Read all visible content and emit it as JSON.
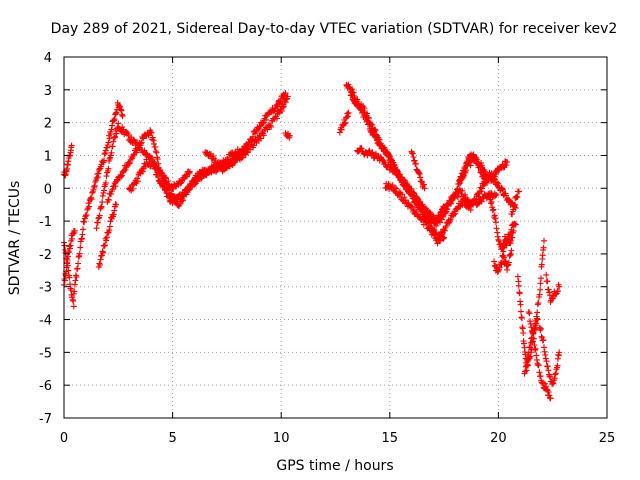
{
  "chart_data": {
    "type": "scatter",
    "title": "Day 289 of 2021, Sidereal Day-to-day VTEC variation (SDTVAR) for receiver kev2",
    "xlabel": "GPS time / hours",
    "ylabel": "SDTVAR / TECUs",
    "xlim": [
      0,
      25
    ],
    "ylim": [
      -7,
      4
    ],
    "xticks": [
      0,
      5,
      10,
      15,
      20,
      25
    ],
    "yticks": [
      -7,
      -6,
      -5,
      -4,
      -3,
      -2,
      -1,
      0,
      1,
      2,
      3,
      4
    ],
    "grid": true,
    "legend": "none",
    "marker": "+",
    "color": "#ff0000",
    "series": [
      {
        "name": "tracks",
        "segments": [
          [
            [
              0.0,
              0.4
            ],
            [
              0.1,
              0.5
            ],
            [
              0.2,
              0.8
            ],
            [
              0.3,
              1.1
            ],
            [
              0.35,
              1.3
            ]
          ],
          [
            [
              0.0,
              -2.9
            ],
            [
              0.1,
              -2.5
            ],
            [
              0.2,
              -2.0
            ],
            [
              0.35,
              -1.5
            ],
            [
              0.5,
              -1.3
            ]
          ],
          [
            [
              0.0,
              -1.7
            ],
            [
              0.15,
              -2.3
            ],
            [
              0.3,
              -3.0
            ],
            [
              0.45,
              -3.6
            ]
          ],
          [
            [
              0.45,
              -3.2
            ],
            [
              0.6,
              -2.5
            ],
            [
              0.75,
              -1.8
            ],
            [
              0.9,
              -1.1
            ],
            [
              1.1,
              -0.6
            ],
            [
              1.3,
              -0.2
            ],
            [
              1.5,
              0.3
            ],
            [
              1.7,
              0.7
            ],
            [
              1.9,
              1.0
            ],
            [
              2.1,
              1.6
            ],
            [
              2.3,
              2.1
            ],
            [
              2.5,
              2.6
            ],
            [
              2.7,
              2.2
            ]
          ],
          [
            [
              1.5,
              -1.2
            ],
            [
              1.7,
              -0.6
            ],
            [
              1.9,
              0.1
            ],
            [
              2.1,
              0.9
            ],
            [
              2.3,
              1.5
            ],
            [
              2.5,
              1.9
            ],
            [
              2.8,
              1.7
            ],
            [
              3.2,
              1.4
            ],
            [
              3.6,
              1.2
            ],
            [
              4.0,
              0.9
            ],
            [
              4.3,
              0.4
            ],
            [
              4.6,
              0.0
            ],
            [
              4.9,
              -0.4
            ],
            [
              5.2,
              -0.3
            ],
            [
              5.6,
              -0.1
            ],
            [
              6.0,
              0.2
            ],
            [
              6.4,
              0.4
            ],
            [
              6.8,
              0.6
            ],
            [
              7.2,
              0.7
            ],
            [
              7.6,
              0.7
            ],
            [
              8.0,
              0.9
            ],
            [
              8.4,
              1.1
            ],
            [
              8.8,
              1.4
            ],
            [
              9.2,
              1.7
            ],
            [
              9.6,
              2.0
            ],
            [
              10.0,
              2.4
            ],
            [
              10.3,
              2.8
            ]
          ],
          [
            [
              1.6,
              -2.4
            ],
            [
              1.8,
              -1.9
            ],
            [
              2.0,
              -1.4
            ],
            [
              2.2,
              -0.9
            ],
            [
              2.4,
              -0.5
            ]
          ],
          [
            [
              2.0,
              -0.4
            ],
            [
              2.4,
              0.2
            ],
            [
              2.8,
              0.6
            ],
            [
              3.2,
              1.0
            ],
            [
              3.6,
              1.5
            ],
            [
              4.0,
              1.7
            ],
            [
              4.2,
              1.2
            ],
            [
              4.4,
              0.6
            ],
            [
              4.7,
              0.1
            ],
            [
              5.0,
              -0.3
            ],
            [
              5.3,
              -0.5
            ],
            [
              5.6,
              -0.2
            ],
            [
              5.9,
              0.2
            ],
            [
              6.3,
              0.5
            ],
            [
              6.7,
              0.5
            ],
            [
              7.1,
              0.6
            ],
            [
              7.5,
              0.9
            ],
            [
              7.9,
              1.1
            ],
            [
              8.3,
              1.2
            ],
            [
              8.7,
              1.6
            ],
            [
              9.1,
              2.0
            ],
            [
              9.5,
              2.3
            ],
            [
              9.9,
              2.6
            ],
            [
              10.2,
              2.9
            ]
          ],
          [
            [
              3.0,
              -0.1
            ],
            [
              3.4,
              0.3
            ],
            [
              3.8,
              0.8
            ],
            [
              4.2,
              0.7
            ],
            [
              4.6,
              0.3
            ],
            [
              5.0,
              0.0
            ],
            [
              5.4,
              0.2
            ],
            [
              5.8,
              0.5
            ]
          ],
          [
            [
              6.5,
              1.1
            ],
            [
              6.9,
              0.9
            ],
            [
              7.3,
              0.6
            ],
            [
              7.7,
              0.8
            ],
            [
              8.1,
              1.0
            ],
            [
              8.5,
              1.3
            ]
          ],
          [
            [
              10.2,
              1.7
            ],
            [
              10.4,
              1.6
            ]
          ],
          [
            [
              12.7,
              1.7
            ],
            [
              12.9,
              2.0
            ],
            [
              13.1,
              2.3
            ]
          ],
          [
            [
              13.0,
              3.2
            ],
            [
              13.3,
              2.9
            ],
            [
              13.6,
              2.5
            ],
            [
              13.9,
              2.1
            ],
            [
              14.2,
              1.7
            ],
            [
              14.5,
              1.4
            ],
            [
              14.8,
              1.1
            ],
            [
              15.1,
              0.8
            ],
            [
              15.4,
              0.4
            ],
            [
              15.7,
              0.1
            ],
            [
              16.0,
              -0.2
            ],
            [
              16.3,
              -0.5
            ],
            [
              16.6,
              -0.8
            ],
            [
              16.9,
              -1.2
            ],
            [
              17.2,
              -1.5
            ],
            [
              17.5,
              -1.3
            ],
            [
              17.8,
              -0.9
            ],
            [
              18.1,
              -0.6
            ],
            [
              18.4,
              -0.4
            ],
            [
              18.7,
              -0.6
            ],
            [
              19.0,
              -0.3
            ],
            [
              19.3,
              0.1
            ],
            [
              19.6,
              0.3
            ],
            [
              19.9,
              0.2
            ],
            [
              20.2,
              -0.1
            ],
            [
              20.5,
              -0.4
            ],
            [
              20.8,
              -0.6
            ]
          ],
          [
            [
              13.2,
              2.8
            ],
            [
              13.5,
              2.6
            ],
            [
              13.8,
              2.4
            ],
            [
              14.1,
              2.0
            ],
            [
              14.4,
              1.6
            ],
            [
              14.7,
              1.2
            ],
            [
              15.0,
              0.9
            ],
            [
              15.3,
              0.5
            ],
            [
              15.6,
              0.2
            ],
            [
              15.9,
              -0.1
            ],
            [
              16.2,
              -0.3
            ],
            [
              16.5,
              -0.6
            ],
            [
              16.8,
              -0.9
            ],
            [
              17.1,
              -1.1
            ],
            [
              17.4,
              -0.9
            ],
            [
              17.7,
              -0.5
            ],
            [
              18.0,
              -0.2
            ],
            [
              18.3,
              0.3
            ],
            [
              18.6,
              0.7
            ],
            [
              18.9,
              0.9
            ],
            [
              19.2,
              0.7
            ],
            [
              19.5,
              0.4
            ],
            [
              19.8,
              0.4
            ],
            [
              20.1,
              0.6
            ],
            [
              20.4,
              0.8
            ]
          ],
          [
            [
              13.5,
              1.2
            ],
            [
              13.9,
              1.1
            ],
            [
              14.3,
              1.0
            ],
            [
              14.7,
              0.8
            ],
            [
              15.1,
              0.6
            ],
            [
              15.5,
              0.3
            ],
            [
              15.9,
              0.0
            ],
            [
              16.3,
              -0.4
            ],
            [
              16.7,
              -0.7
            ],
            [
              17.1,
              -1.0
            ],
            [
              17.5,
              -0.6
            ],
            [
              17.9,
              -0.3
            ],
            [
              18.3,
              -0.1
            ],
            [
              18.7,
              -0.5
            ],
            [
              19.1,
              -0.4
            ],
            [
              19.5,
              -0.2
            ],
            [
              19.9,
              -0.2
            ]
          ],
          [
            [
              14.8,
              0.1
            ],
            [
              15.2,
              0.0
            ],
            [
              15.6,
              -0.3
            ],
            [
              16.0,
              -0.6
            ],
            [
              16.4,
              -0.9
            ],
            [
              16.8,
              -1.2
            ],
            [
              17.2,
              -1.6
            ],
            [
              17.5,
              -1.5
            ]
          ],
          [
            [
              16.0,
              1.1
            ],
            [
              16.2,
              0.7
            ],
            [
              16.4,
              0.3
            ],
            [
              16.6,
              0.0
            ]
          ],
          [
            [
              18.2,
              0.2
            ],
            [
              18.4,
              0.5
            ],
            [
              18.6,
              0.9
            ],
            [
              18.8,
              1.0
            ],
            [
              19.0,
              0.8
            ],
            [
              19.2,
              0.5
            ],
            [
              19.4,
              0.3
            ]
          ],
          [
            [
              19.6,
              -0.2
            ],
            [
              19.8,
              -0.8
            ],
            [
              20.0,
              -1.5
            ],
            [
              20.2,
              -2.0
            ],
            [
              20.4,
              -1.6
            ],
            [
              20.6,
              -1.2
            ],
            [
              20.8,
              -1.1
            ]
          ],
          [
            [
              19.8,
              -2.3
            ],
            [
              20.0,
              -2.6
            ],
            [
              20.2,
              -2.1
            ],
            [
              20.4,
              -2.4
            ],
            [
              20.6,
              -1.9
            ]
          ],
          [
            [
              20.6,
              -0.8
            ],
            [
              20.8,
              -0.3
            ],
            [
              20.95,
              -0.1
            ]
          ],
          [
            [
              20.9,
              -2.7
            ],
            [
              21.0,
              -3.4
            ],
            [
              21.1,
              -4.2
            ],
            [
              21.2,
              -4.9
            ],
            [
              21.3,
              -5.5
            ],
            [
              21.5,
              -5.0
            ],
            [
              21.7,
              -4.1
            ],
            [
              21.9,
              -3.2
            ],
            [
              22.0,
              -2.3
            ],
            [
              22.1,
              -1.6
            ]
          ],
          [
            [
              21.4,
              -3.8
            ],
            [
              21.6,
              -4.5
            ],
            [
              21.8,
              -5.3
            ],
            [
              22.0,
              -5.9
            ],
            [
              22.2,
              -6.1
            ],
            [
              22.4,
              -6.4
            ]
          ],
          [
            [
              21.9,
              -4.2
            ],
            [
              22.1,
              -4.8
            ],
            [
              22.3,
              -5.6
            ],
            [
              22.5,
              -6.0
            ],
            [
              22.7,
              -5.4
            ],
            [
              22.8,
              -5.0
            ]
          ],
          [
            [
              22.2,
              -2.7
            ],
            [
              22.4,
              -3.4
            ],
            [
              22.6,
              -3.2
            ],
            [
              22.8,
              -3.0
            ]
          ],
          [
            [
              21.2,
              -5.7
            ],
            [
              21.4,
              -5.0
            ],
            [
              21.6,
              -4.4
            ],
            [
              21.8,
              -4.0
            ]
          ],
          [
            [
              20.2,
              -1.9
            ],
            [
              20.3,
              -1.5
            ],
            [
              20.5,
              -1.7
            ],
            [
              20.7,
              -1.3
            ]
          ]
        ]
      }
    ]
  }
}
